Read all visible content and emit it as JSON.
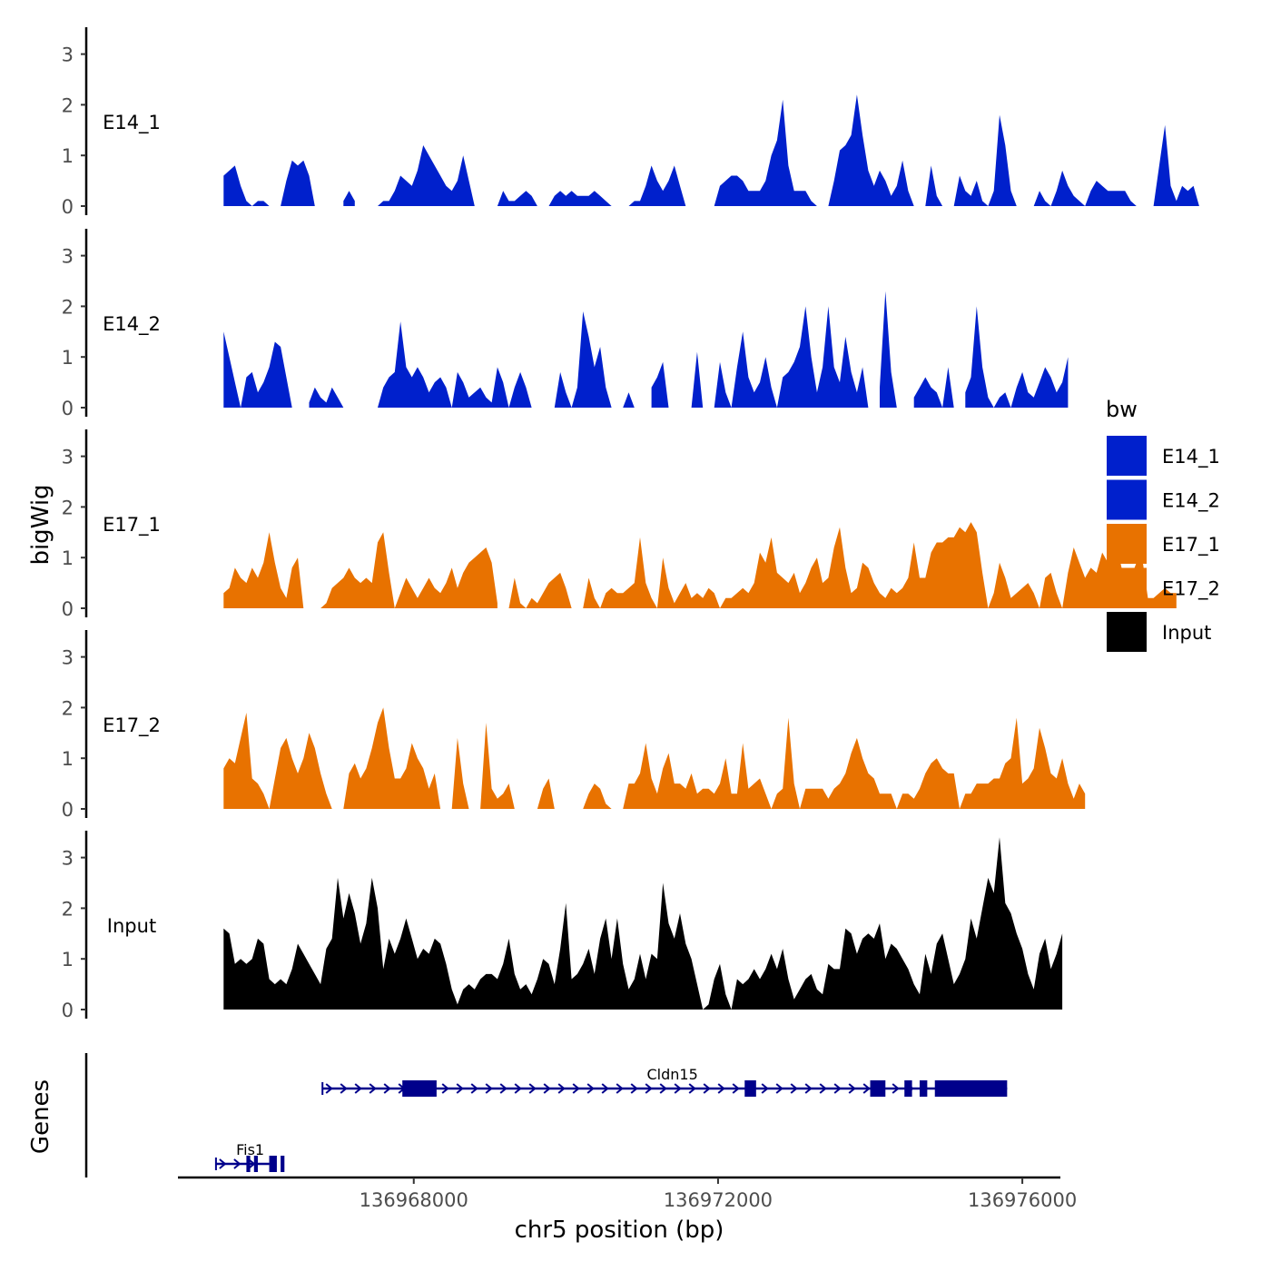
{
  "chart_data": {
    "type": "area",
    "title": "",
    "ylabel": "bigWig",
    "xlabel": "chr5 position (bp)",
    "genes_label": "Genes",
    "ylim": [
      0,
      3.5
    ],
    "yticks": [
      0,
      1,
      2,
      3
    ],
    "xlim": [
      136964900,
      136976500
    ],
    "xticks": [
      136968000,
      136972000,
      136976000
    ],
    "xtick_labels": [
      "136968000",
      "136972000",
      "136976000"
    ],
    "legend": {
      "title": "bw",
      "position": "right",
      "entries": [
        {
          "name": "E14_1",
          "color": "#0020CC"
        },
        {
          "name": "E14_2",
          "color": "#0020CC"
        },
        {
          "name": "E17_1",
          "color": "#E87200"
        },
        {
          "name": "E17_2",
          "color": "#E87200"
        },
        {
          "name": "Input",
          "color": "#000000"
        }
      ]
    },
    "x_start": 136965500,
    "x_step": 75,
    "series": [
      {
        "name": "E14_1",
        "color": "#0020CC",
        "values": [
          0.6,
          0.7,
          0.8,
          0.4,
          0.1,
          0.0,
          0.1,
          0.1,
          0.0,
          null,
          0.0,
          0.5,
          0.9,
          0.8,
          0.9,
          0.6,
          0.0,
          null,
          null,
          null,
          null,
          0.1,
          0.3,
          0.1,
          null,
          null,
          null,
          0.0,
          0.1,
          0.1,
          0.3,
          0.6,
          0.5,
          0.4,
          0.7,
          1.2,
          1.0,
          0.8,
          0.6,
          0.4,
          0.3,
          0.5,
          1.0,
          0.5,
          0.0,
          null,
          null,
          null,
          0.0,
          0.3,
          0.1,
          0.1,
          0.2,
          0.3,
          0.2,
          0.0,
          null,
          0.0,
          0.2,
          0.3,
          0.2,
          0.3,
          0.2,
          0.2,
          0.2,
          0.3,
          0.2,
          0.1,
          0.0,
          null,
          null,
          0.0,
          0.1,
          0.1,
          0.4,
          0.8,
          0.5,
          0.3,
          0.5,
          0.8,
          0.4,
          0.0,
          null,
          null,
          null,
          null,
          0.0,
          0.4,
          0.5,
          0.6,
          0.6,
          0.5,
          0.3,
          0.3,
          0.3,
          0.5,
          1.0,
          1.3,
          2.1,
          0.8,
          0.3,
          0.3,
          0.3,
          0.1,
          0.0,
          null,
          0.0,
          0.5,
          1.1,
          1.2,
          1.4,
          2.2,
          1.4,
          0.7,
          0.4,
          0.7,
          0.5,
          0.2,
          0.4,
          0.9,
          0.3,
          0.0,
          null,
          0.0,
          0.8,
          0.2,
          0.0,
          null,
          0.0,
          0.6,
          0.3,
          0.2,
          0.5,
          0.1,
          0.0,
          0.3,
          1.8,
          1.2,
          0.3,
          0.0,
          null,
          null,
          0.0,
          0.3,
          0.1,
          0.0,
          0.3,
          0.7,
          0.4,
          0.2,
          0.1,
          0.0,
          0.3,
          0.5,
          0.4,
          0.3,
          0.3,
          0.3,
          0.3,
          0.1,
          0.0,
          null,
          null,
          0.0,
          0.8,
          1.6,
          0.4,
          0.1,
          0.4,
          0.3,
          0.4,
          0.0
        ]
      },
      {
        "name": "E14_2",
        "color": "#0020CC",
        "values": [
          1.5,
          1.0,
          0.5,
          0.0,
          0.6,
          0.7,
          0.3,
          0.5,
          0.8,
          1.3,
          1.2,
          0.6,
          0.0,
          null,
          null,
          0.1,
          0.4,
          0.2,
          0.1,
          0.4,
          0.2,
          0.0,
          null,
          null,
          null,
          null,
          null,
          0.0,
          0.4,
          0.6,
          0.7,
          1.7,
          0.8,
          0.6,
          0.8,
          0.6,
          0.3,
          0.5,
          0.6,
          0.4,
          0.0,
          0.7,
          0.5,
          0.2,
          0.3,
          0.4,
          0.2,
          0.1,
          0.8,
          0.5,
          0.0,
          0.4,
          0.7,
          0.4,
          0.0,
          null,
          null,
          null,
          0.0,
          0.7,
          0.3,
          0.0,
          0.4,
          1.9,
          1.4,
          0.8,
          1.2,
          0.4,
          0.0,
          null,
          0.0,
          0.3,
          0.0,
          null,
          null,
          0.4,
          0.6,
          0.9,
          0.0,
          null,
          null,
          null,
          0.0,
          1.1,
          0.0,
          null,
          0.0,
          0.9,
          0.3,
          0.0,
          0.8,
          1.5,
          0.6,
          0.3,
          0.5,
          1.0,
          0.4,
          0.0,
          0.6,
          0.7,
          0.9,
          1.2,
          2.0,
          1.0,
          0.3,
          0.8,
          2.0,
          0.8,
          0.5,
          1.4,
          0.7,
          0.3,
          0.8,
          0.0,
          null,
          0.4,
          2.3,
          0.7,
          0.0,
          null,
          null,
          0.2,
          0.4,
          0.6,
          0.4,
          0.3,
          0.0,
          0.8,
          0.0,
          null,
          0.3,
          0.6,
          2.0,
          0.8,
          0.2,
          0.0,
          0.2,
          0.3,
          0.0,
          0.4,
          0.7,
          0.3,
          0.2,
          0.5,
          0.8,
          0.6,
          0.3,
          0.5,
          1.0
        ]
      },
      {
        "name": "E17_1",
        "color": "#E87200",
        "values": [
          0.3,
          0.4,
          0.8,
          0.6,
          0.5,
          0.8,
          0.6,
          0.9,
          1.5,
          0.9,
          0.4,
          0.2,
          0.8,
          1.0,
          0.0,
          null,
          null,
          0.0,
          0.1,
          0.4,
          0.5,
          0.6,
          0.8,
          0.6,
          0.5,
          0.6,
          0.5,
          1.3,
          1.5,
          0.7,
          0.0,
          0.3,
          0.6,
          0.4,
          0.2,
          0.4,
          0.6,
          0.4,
          0.3,
          0.5,
          0.8,
          0.4,
          0.7,
          0.9,
          1.0,
          1.1,
          1.2,
          0.9,
          0.1,
          null,
          0.0,
          0.6,
          0.1,
          0.0,
          0.2,
          0.1,
          0.3,
          0.5,
          0.6,
          0.7,
          0.4,
          0.0,
          null,
          0.0,
          0.6,
          0.2,
          0.0,
          0.3,
          0.4,
          0.3,
          0.3,
          0.4,
          0.5,
          1.4,
          0.5,
          0.2,
          0.0,
          1.0,
          0.4,
          0.1,
          0.3,
          0.5,
          0.2,
          0.3,
          0.2,
          0.4,
          0.3,
          0.0,
          0.2,
          0.2,
          0.3,
          0.4,
          0.3,
          0.5,
          1.1,
          0.9,
          1.4,
          0.7,
          0.6,
          0.5,
          0.7,
          0.3,
          0.5,
          0.8,
          1.0,
          0.5,
          0.6,
          1.2,
          1.6,
          0.8,
          0.3,
          0.4,
          0.9,
          0.8,
          0.5,
          0.3,
          0.2,
          0.4,
          0.3,
          0.4,
          0.6,
          1.3,
          0.6,
          0.6,
          1.1,
          1.3,
          1.3,
          1.4,
          1.4,
          1.6,
          1.5,
          1.7,
          1.5,
          0.7,
          0.0,
          0.3,
          0.9,
          0.6,
          0.2,
          0.3,
          0.4,
          0.5,
          0.3,
          0.0,
          0.6,
          0.7,
          0.3,
          0.0,
          0.7,
          1.2,
          0.9,
          0.6,
          0.8,
          0.7,
          1.1,
          0.9,
          1.5,
          1.0,
          0.5,
          0.6,
          0.9,
          1.0,
          0.2,
          0.2,
          0.3,
          0.4,
          0.3,
          0.3
        ]
      },
      {
        "name": "E17_2",
        "color": "#E87200",
        "values": [
          0.8,
          1.0,
          0.9,
          1.4,
          1.9,
          0.6,
          0.5,
          0.3,
          0.0,
          0.6,
          1.2,
          1.4,
          1.0,
          0.7,
          1.0,
          1.5,
          1.2,
          0.7,
          0.3,
          0.0,
          null,
          0.0,
          0.7,
          0.9,
          0.6,
          0.8,
          1.2,
          1.7,
          2.0,
          1.2,
          0.6,
          0.6,
          0.8,
          1.3,
          1.0,
          0.8,
          0.4,
          0.7,
          0.0,
          null,
          0.0,
          1.4,
          0.5,
          0.0,
          null,
          0.0,
          1.7,
          0.4,
          0.2,
          0.3,
          0.5,
          0.0,
          null,
          null,
          null,
          0.0,
          0.4,
          0.6,
          0.0,
          null,
          null,
          null,
          null,
          0.0,
          0.3,
          0.5,
          0.4,
          0.1,
          0.0,
          null,
          0.0,
          0.5,
          0.5,
          0.7,
          1.3,
          0.6,
          0.3,
          0.8,
          1.1,
          0.5,
          0.5,
          0.4,
          0.7,
          0.3,
          0.4,
          0.4,
          0.3,
          0.5,
          1.0,
          0.3,
          0.3,
          1.3,
          0.4,
          0.5,
          0.6,
          0.3,
          0.0,
          0.3,
          0.4,
          1.8,
          0.5,
          0.0,
          0.4,
          0.4,
          0.4,
          0.4,
          0.2,
          0.4,
          0.5,
          0.7,
          1.1,
          1.4,
          1.0,
          0.7,
          0.6,
          0.3,
          0.3,
          0.3,
          0.0,
          0.3,
          0.3,
          0.2,
          0.4,
          0.7,
          0.9,
          1.0,
          0.8,
          0.7,
          0.7,
          0.0,
          0.3,
          0.3,
          0.5,
          0.5,
          0.5,
          0.6,
          0.6,
          0.9,
          1.0,
          1.8,
          0.5,
          0.6,
          0.8,
          1.6,
          1.2,
          0.7,
          0.6,
          1.0,
          0.5,
          0.2,
          0.5,
          0.3
        ]
      },
      {
        "name": "Input",
        "color": "#000000",
        "values": [
          1.6,
          1.5,
          0.9,
          1.0,
          0.9,
          1.0,
          1.4,
          1.3,
          0.6,
          0.5,
          0.6,
          0.5,
          0.8,
          1.3,
          1.1,
          0.9,
          0.7,
          0.5,
          1.2,
          1.4,
          2.6,
          1.8,
          2.3,
          1.9,
          1.3,
          1.7,
          2.6,
          2.0,
          0.8,
          1.4,
          1.1,
          1.4,
          1.8,
          1.4,
          1.0,
          1.2,
          1.1,
          1.4,
          1.3,
          0.9,
          0.4,
          0.1,
          0.4,
          0.5,
          0.4,
          0.6,
          0.7,
          0.7,
          0.6,
          0.9,
          1.4,
          0.7,
          0.4,
          0.5,
          0.3,
          0.6,
          1.0,
          0.9,
          0.5,
          1.2,
          2.1,
          0.6,
          0.7,
          0.9,
          1.2,
          0.7,
          1.4,
          1.8,
          1.0,
          1.8,
          0.9,
          0.4,
          0.6,
          1.1,
          0.6,
          1.1,
          1.0,
          2.5,
          1.7,
          1.4,
          1.9,
          1.3,
          1.0,
          0.5,
          0.0,
          0.1,
          0.6,
          0.9,
          0.3,
          0.0,
          0.6,
          0.5,
          0.6,
          0.8,
          0.6,
          0.8,
          1.1,
          0.8,
          1.2,
          0.6,
          0.2,
          0.4,
          0.6,
          0.7,
          0.4,
          0.3,
          0.9,
          0.8,
          0.8,
          1.6,
          1.5,
          1.1,
          1.4,
          1.5,
          1.4,
          1.7,
          1.0,
          1.3,
          1.2,
          1.0,
          0.8,
          0.5,
          0.3,
          1.1,
          0.7,
          1.3,
          1.5,
          1.0,
          0.5,
          0.7,
          1.0,
          1.8,
          1.4,
          2.0,
          2.6,
          2.3,
          3.4,
          2.1,
          1.9,
          1.5,
          1.2,
          0.7,
          0.4,
          1.1,
          1.4,
          0.8,
          1.1,
          1.5
        ]
      }
    ],
    "genes": [
      {
        "name": "Cldn15",
        "strand": "+",
        "start": 136966800,
        "end": 136975800,
        "exons": [
          [
            136967850,
            136968300
          ],
          [
            136972350,
            136972500
          ],
          [
            136974000,
            136974200
          ],
          [
            136974450,
            136974550
          ],
          [
            136974650,
            136974750
          ],
          [
            136974850,
            136975800
          ]
        ]
      },
      {
        "name": "Fis1",
        "strand": "+",
        "start": 136965400,
        "end": 136966100,
        "exons": [
          [
            136965800,
            136965850
          ],
          [
            136965900,
            136965950
          ],
          [
            136966100,
            136966200
          ],
          [
            136966250,
            136966300
          ]
        ]
      }
    ]
  }
}
